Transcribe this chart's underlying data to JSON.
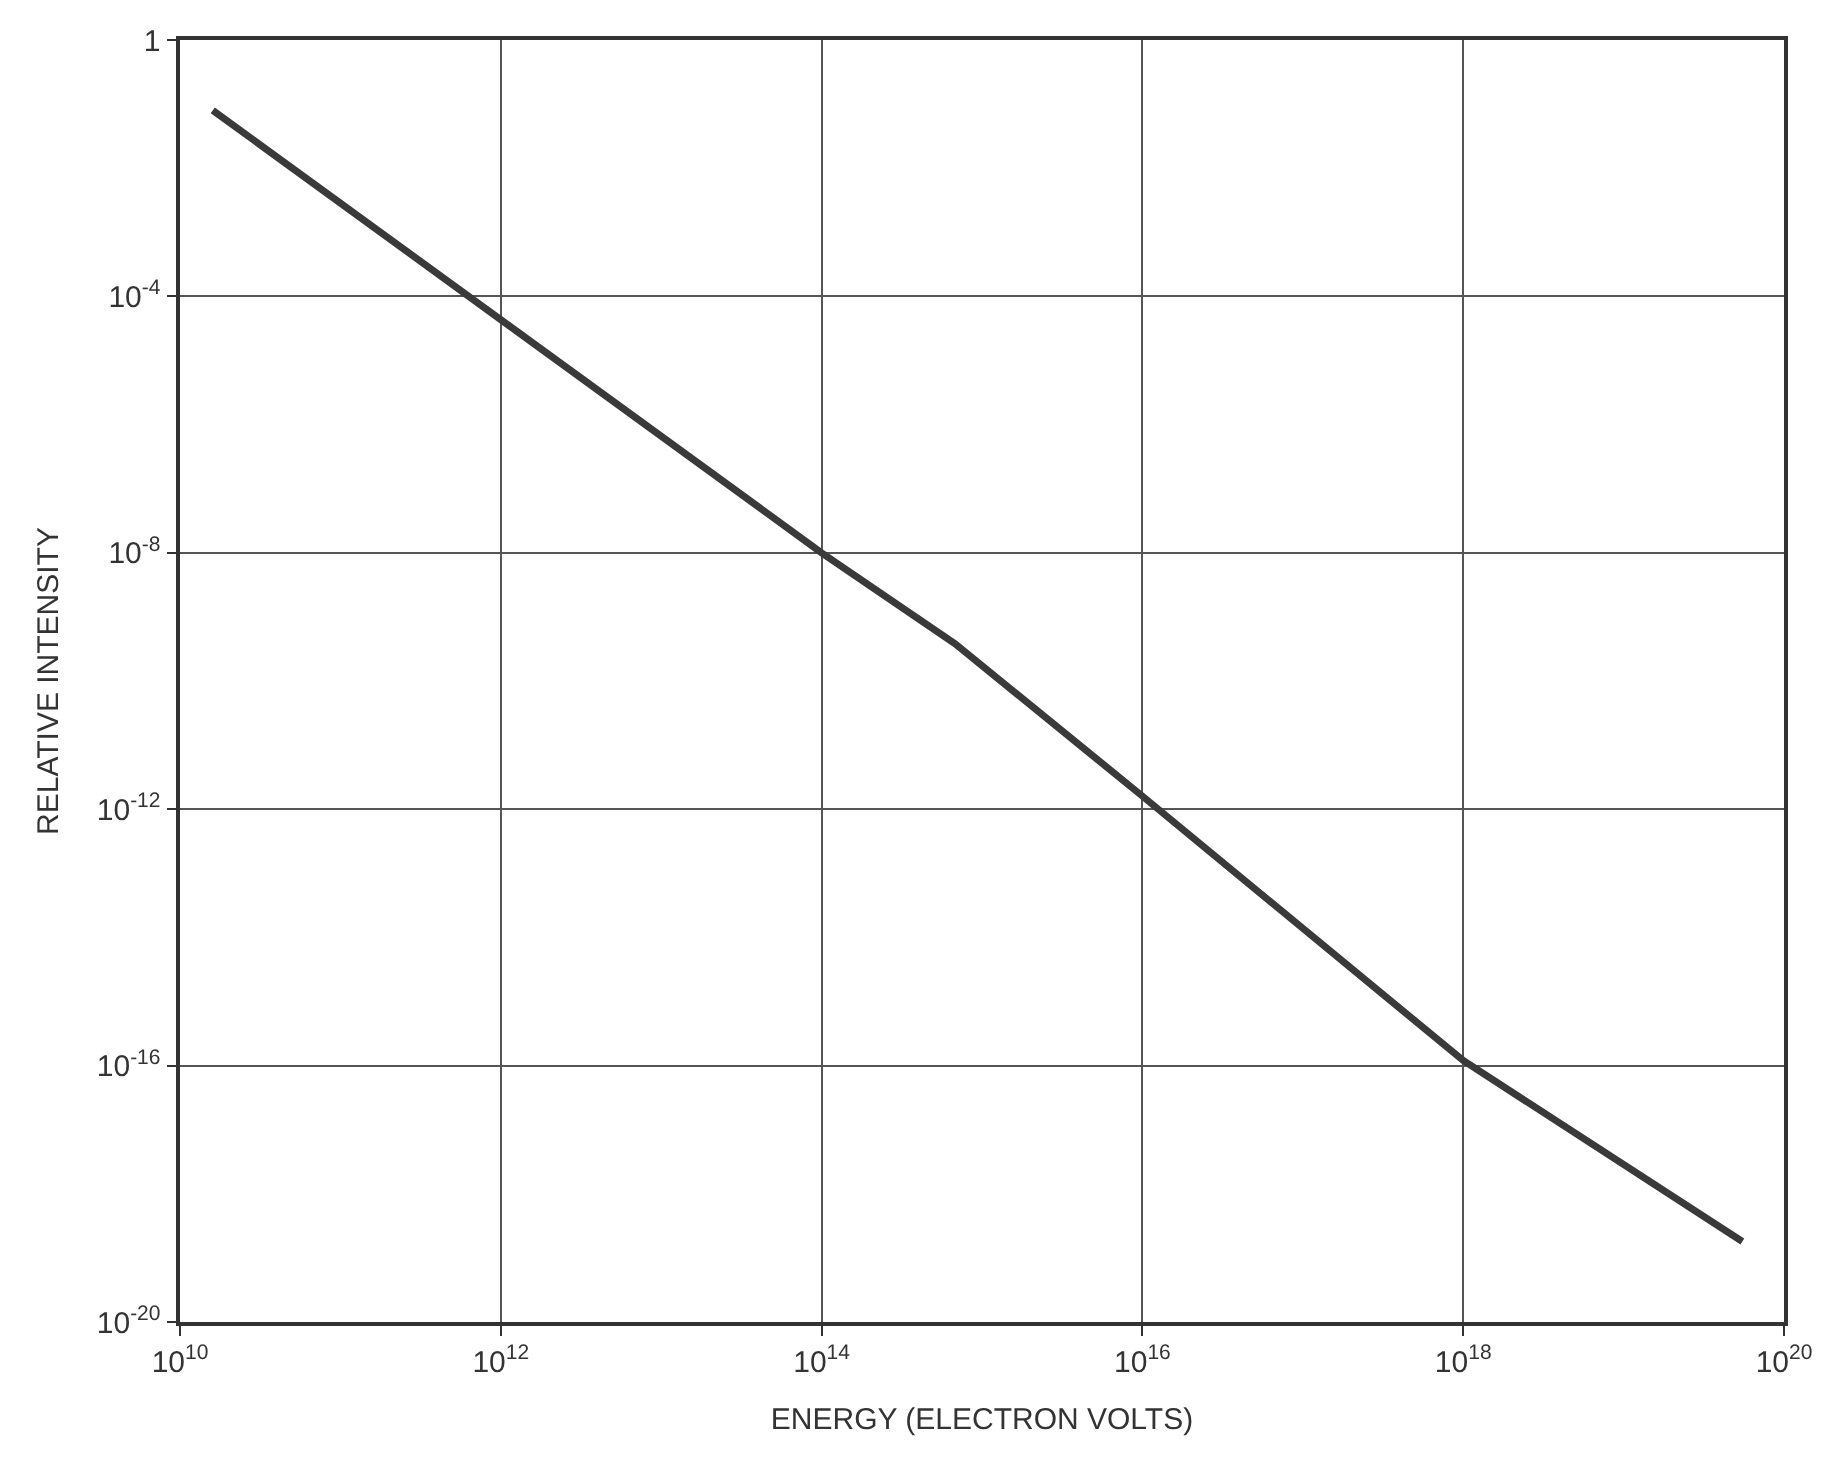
{
  "chart_data": {
    "type": "line",
    "xlabel": "ENERGY (ELECTRON VOLTS)",
    "ylabel": "RELATIVE INTENSITY",
    "log": "xy",
    "grid": true,
    "marker": "none",
    "line_style": "solid",
    "xlim": [
      10000000000.0,
      1e+20
    ],
    "ylim": [
      1e-20,
      1
    ],
    "xticks": [
      {
        "value": 10000000000.0,
        "label": "10$^{10}$"
      },
      {
        "value": 1000000000000.0,
        "label": "10$^{12}$"
      },
      {
        "value": 100000000000000.0,
        "label": "10$^{14}$"
      },
      {
        "value": 1e+16,
        "label": "10$^{16}$"
      },
      {
        "value": 1e+18,
        "label": "10$^{18}$"
      },
      {
        "value": 1e+20,
        "label": "10$^{20}$"
      }
    ],
    "yticks": [
      1,
      {
        "value": 0.0001,
        "label": "10$^{-4}$"
      },
      {
        "value": 1e-08,
        "label": "10$^{-8}$"
      },
      {
        "value": 1e-12,
        "label": "10$^{-12}$"
      },
      {
        "value": 1e-16,
        "label": "10$^{-16}$"
      },
      {
        "value": 1e-20,
        "label": "10$^{-20}$"
      }
    ],
    "series": [
      {
        "color": "#3a3a3a",
        "x": [
          16000000000.0,
          100000000000000.0,
          680000000000000.0,
          1e+16,
          1e+18,
          5.5e+19
        ],
        "values": [
          0.08,
          1e-08,
          3.8e-10,
          1.6e-12,
          1.2e-16,
          1.8e-19
        ]
      }
    ]
  }
}
